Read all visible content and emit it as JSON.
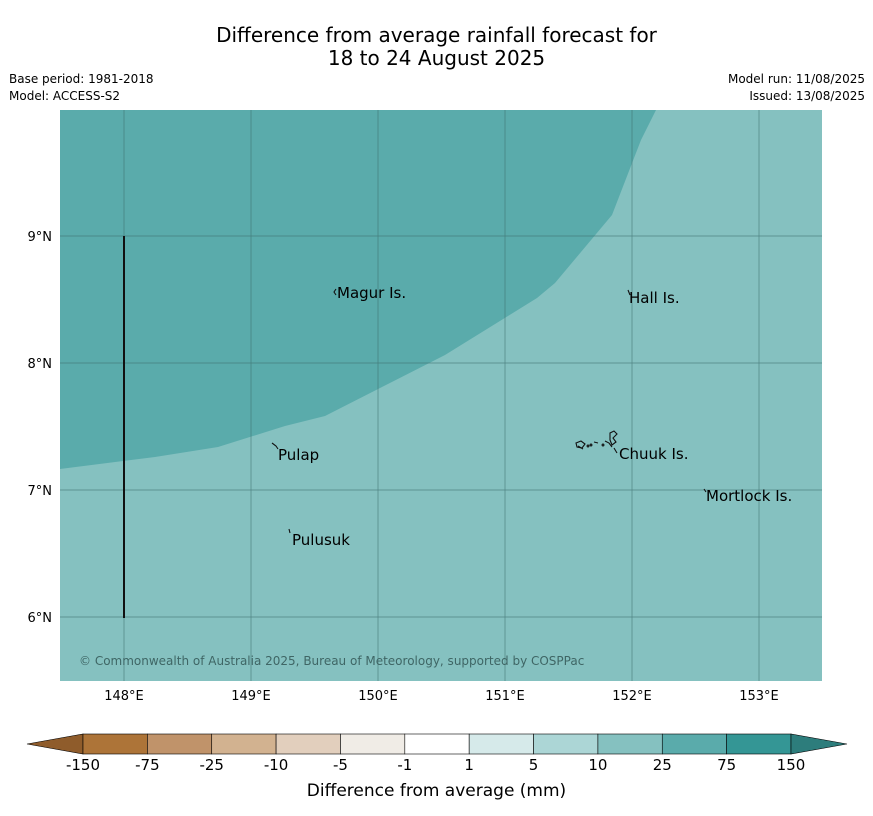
{
  "header": {
    "title_line1": "Difference from average rainfall forecast for",
    "title_line2": "18 to 24 August 2025",
    "base_period": "Base period: 1981-2018",
    "model": "Model: ACCESS-S2",
    "model_run": "Model run: 11/08/2025",
    "issued": "Issued: 13/08/2025"
  },
  "map": {
    "lat_labels": [
      "9°N",
      "8°N",
      "7°N",
      "6°N"
    ],
    "lon_labels": [
      "148°E",
      "149°E",
      "150°E",
      "151°E",
      "152°E",
      "153°E"
    ],
    "places": {
      "magur": "Magur Is.",
      "hall": "Hall Is.",
      "pulap": "Pulap",
      "chuuk": "Chuuk Is.",
      "mortlock": "Mortlock Is.",
      "pulusuk": "Pulusuk"
    },
    "credit": "© Commonwealth of Australia 2025, Bureau of Meteorology, supported by COSPPac",
    "colors": {
      "zone_25_75": "#5aabab",
      "zone_10_25": "#85c1c0"
    }
  },
  "colorbar": {
    "ticks": [
      "-150",
      "-75",
      "-25",
      "-10",
      "-5",
      "-1",
      "1",
      "5",
      "10",
      "25",
      "75",
      "150"
    ],
    "colors": [
      "#ad7438",
      "#c0936a",
      "#d2b290",
      "#e2cfbd",
      "#f0ece6",
      "#ffffff",
      "#d6eaea",
      "#acd6d6",
      "#85c1c0",
      "#5aabab",
      "#349695"
    ],
    "under_color": "#8f5c2b",
    "over_color": "#2d7d7c",
    "label": "Difference from average (mm)"
  }
}
